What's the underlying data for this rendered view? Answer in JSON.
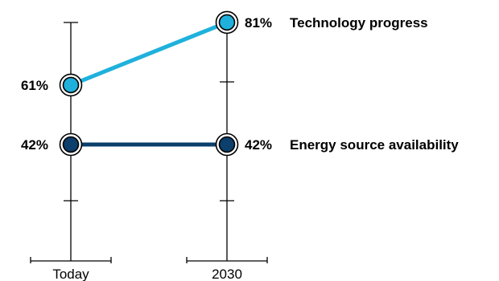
{
  "chart_data": {
    "type": "line",
    "categories": [
      "Today",
      "2030"
    ],
    "series": [
      {
        "name": "Technology progress",
        "values": [
          61,
          81
        ],
        "color": "#1fb1dc"
      },
      {
        "name": "Energy source availability",
        "values": [
          42,
          42
        ],
        "color": "#0c3f6b"
      }
    ],
    "value_suffix": "%",
    "ylim": [
      20,
      90
    ],
    "grid": false,
    "legend": "right-end-labels"
  }
}
